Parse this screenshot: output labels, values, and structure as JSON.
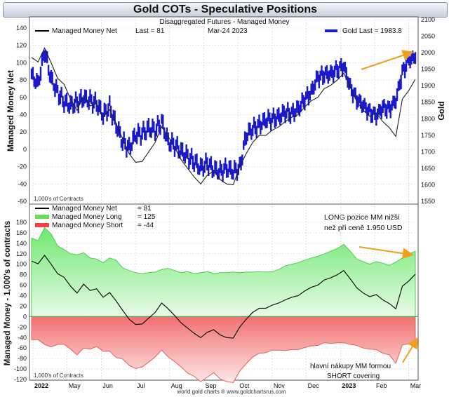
{
  "title": "Gold COTs - Speculative Positions",
  "top_panel": {
    "subtitle": "Disaggregated Futures - Managed Money",
    "legend_net": "Managed Money Net",
    "last_label": "Last = 81",
    "date": "Mar-24  2023",
    "legend_gold": "Gold Last = 1983.8",
    "units_note": "1,000's of Contracts",
    "ylabel_left": "Managed Money Net",
    "ylabel_right": "Gold",
    "left_ticks": [
      "140",
      "120",
      "100",
      "80",
      "60",
      "40",
      "20",
      "0",
      "-20",
      "-40",
      "-60"
    ],
    "right_ticks": [
      "2100",
      "2050",
      "2000",
      "1950",
      "1900",
      "1850",
      "1800",
      "1750",
      "1700",
      "1650",
      "1600",
      "1550"
    ]
  },
  "bottom_panel": {
    "legend": [
      {
        "label": "Managed Money Net",
        "value": "= 81",
        "color": "#000000"
      },
      {
        "label": "Managed Money Long",
        "value": "= 125",
        "color": "#66dd55"
      },
      {
        "label": "Managed Money Short",
        "value": "= -44",
        "color": "#ee4444"
      }
    ],
    "annotation_top": "LONG pozice MM nižší",
    "annotation_top2": "než při ceně 1.950 USD",
    "annotation_bottom": "hlavní nákupy MM formou",
    "annotation_bottom2": "SHORT covering",
    "units_note": "1,000's of Contracts",
    "ylabel": "Managed Money - 1,000's of contracts",
    "ticks": [
      "180",
      "160",
      "140",
      "120",
      "100",
      "80",
      "60",
      "40",
      "20",
      "0",
      "-20",
      "-40",
      "-60",
      "-80",
      "-100",
      "-120"
    ]
  },
  "x_labels": [
    "2022",
    "May",
    "Jun",
    "Jul",
    "Aug",
    "Sep",
    "Oct",
    "Nov",
    "Dec",
    "2023",
    "Feb",
    "Mar"
  ],
  "footer": "world gold charts ® www.goldchartsrus.com",
  "colors": {
    "gold_bars": "#1a1acc",
    "arrow": "#f0a020",
    "long_fill": "#8ef08e",
    "short_fill": "#f59090"
  },
  "chart_data": {
    "type": "line",
    "x": [
      0,
      1,
      2,
      3,
      4,
      5,
      6,
      7,
      8,
      9,
      10,
      11,
      12,
      13,
      14,
      15,
      16,
      17,
      18,
      19,
      20,
      21,
      22,
      23,
      24,
      25,
      26,
      27,
      28,
      29,
      30,
      31,
      32,
      33,
      34,
      35,
      36,
      37,
      38,
      39,
      40,
      41,
      42,
      43,
      44,
      45,
      46,
      47,
      48,
      49,
      50,
      51,
      52,
      53,
      54,
      55,
      56,
      57,
      58,
      59
    ],
    "series": [
      {
        "name": "Managed Money Net",
        "values": [
          106,
          101,
          117,
          100,
          82,
          75,
          58,
          45,
          62,
          50,
          53,
          37,
          46,
          30,
          12,
          -5,
          -15,
          -14,
          -3,
          8,
          26,
          15,
          2,
          -12,
          -22,
          -32,
          -40,
          -30,
          -25,
          -35,
          -40,
          -41,
          -20,
          -5,
          8,
          16,
          16,
          22,
          26,
          32,
          37,
          40,
          49,
          56,
          60,
          70,
          74,
          80,
          88,
          72,
          55,
          45,
          38,
          42,
          32,
          25,
          15,
          58,
          68,
          81
        ]
      },
      {
        "name": "Managed Money Long",
        "values": [
          150,
          145,
          170,
          158,
          135,
          128,
          120,
          118,
          122,
          112,
          110,
          103,
          112,
          108,
          93,
          88,
          84,
          82,
          84,
          85,
          90,
          92,
          88,
          84,
          86,
          82,
          84,
          86,
          82,
          84,
          84,
          85,
          84,
          85,
          85,
          86,
          85,
          86,
          90,
          97,
          100,
          103,
          108,
          112,
          115,
          120,
          125,
          130,
          138,
          125,
          110,
          105,
          100,
          105,
          102,
          98,
          104,
          112,
          120,
          125
        ]
      },
      {
        "name": "Managed Money Short",
        "values": [
          -44,
          -44,
          -53,
          -58,
          -53,
          -53,
          -62,
          -73,
          -60,
          -62,
          -57,
          -66,
          -66,
          -78,
          -81,
          -93,
          -99,
          -96,
          -87,
          -77,
          -64,
          -77,
          -86,
          -96,
          -108,
          -114,
          -124,
          -116,
          -107,
          -119,
          -124,
          -126,
          -104,
          -90,
          -77,
          -70,
          -69,
          -64,
          -64,
          -65,
          -63,
          -63,
          -59,
          -56,
          -55,
          -50,
          -51,
          -50,
          -50,
          -53,
          -55,
          -60,
          -62,
          -63,
          -70,
          -73,
          -89,
          -54,
          -52,
          -44
        ]
      },
      {
        "name": "Gold",
        "values": [
          1930,
          1905,
          2005,
          1920,
          1880,
          1850,
          1840,
          1850,
          1860,
          1855,
          1845,
          1810,
          1835,
          1780,
          1730,
          1710,
          1750,
          1755,
          1770,
          1765,
          1790,
          1730,
          1720,
          1700,
          1685,
          1670,
          1650,
          1665,
          1645,
          1640,
          1650,
          1640,
          1650,
          1750,
          1770,
          1780,
          1795,
          1800,
          1805,
          1820,
          1815,
          1830,
          1860,
          1880,
          1925,
          1935,
          1935,
          1950,
          1960,
          1895,
          1860,
          1840,
          1820,
          1810,
          1835,
          1830,
          1855,
          1940,
          1980,
          1983.8
        ]
      }
    ],
    "title": "Gold COTs - Speculative Positions",
    "top_ylim": [
      -60,
      140
    ],
    "gold_ylim": [
      1550,
      2100
    ],
    "bottom_ylim": [
      -120,
      180
    ],
    "xlabel": "",
    "ylabel": "Managed Money - 1,000's of contracts"
  }
}
